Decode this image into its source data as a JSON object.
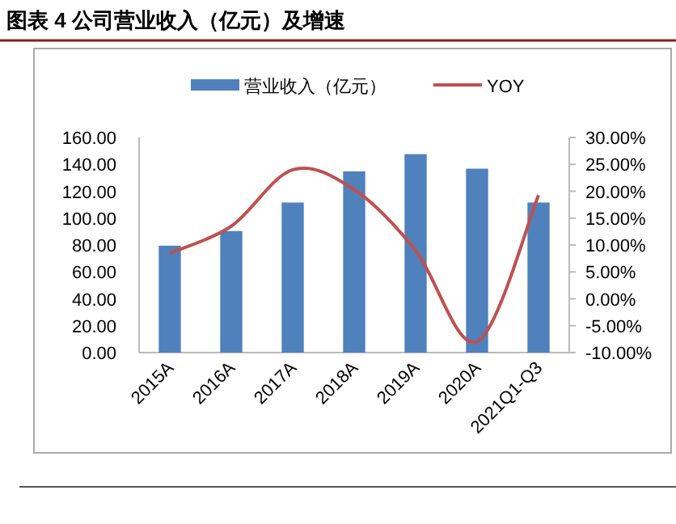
{
  "chart_data": {
    "type": "bar",
    "title": "图表 4 公司营业收入（亿元）及增速",
    "categories": [
      "2015A",
      "2016A",
      "2017A",
      "2018A",
      "2019A",
      "2020A",
      "2021Q1-Q3"
    ],
    "series": [
      {
        "name": "营业收入（亿元）",
        "color": "#4f81bd",
        "values": [
          79.5,
          90.4,
          111.6,
          134.8,
          147.6,
          136.8,
          111.6
        ]
      },
      {
        "name": "YOY",
        "type": "line",
        "axis": "y2",
        "color": "#c0504d",
        "values": [
          8.5,
          13.5,
          24,
          20.3,
          9,
          -8,
          19.3
        ]
      }
    ],
    "ylim": [
      0,
      160
    ],
    "yticks": [
      {
        "value": 0,
        "label": "0.00"
      },
      {
        "value": 20,
        "label": "20.00"
      },
      {
        "value": 40,
        "label": "40.00"
      },
      {
        "value": 60,
        "label": "60.00"
      },
      {
        "value": 80,
        "label": "80.00"
      },
      {
        "value": 100,
        "label": "100.00"
      },
      {
        "value": 120,
        "label": "120.00"
      },
      {
        "value": 140,
        "label": "140.00"
      },
      {
        "value": 160,
        "label": "160.00"
      }
    ],
    "y2lim": [
      -10,
      30
    ],
    "y2ticks": [
      {
        "value": -10,
        "label": "-10.00%"
      },
      {
        "value": -5,
        "label": "-5.00%"
      },
      {
        "value": 0,
        "label": "0.00%"
      },
      {
        "value": 5,
        "label": "5.00%"
      },
      {
        "value": 10,
        "label": "10.00%"
      },
      {
        "value": 15,
        "label": "15.00%"
      },
      {
        "value": 20,
        "label": "20.00%"
      },
      {
        "value": 25,
        "label": "25.00%"
      },
      {
        "value": 30,
        "label": "30.00%"
      }
    ],
    "legend": "top",
    "grid": false
  }
}
